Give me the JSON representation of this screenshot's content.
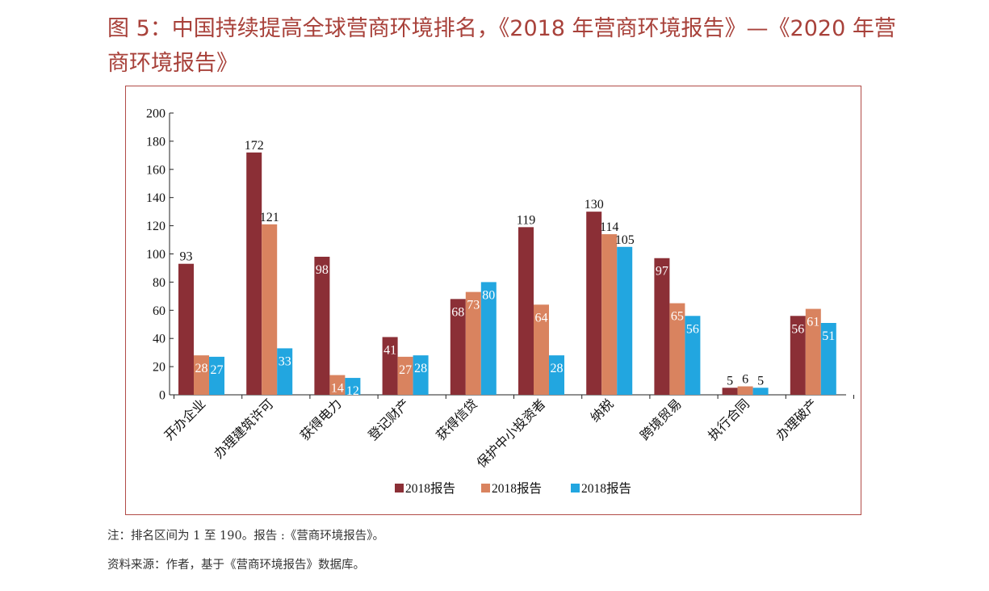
{
  "title": "图 5：中国持续提高全球营商环境排名，《2018 年营商环境报告》—《2020 年营商环境报告》",
  "note": "注：排名区间为 1 至 190。报告 :《营商环境报告》。",
  "source": "资料来源：作者，基于《营商环境报告》数据库。",
  "colors": {
    "title": "#a8413a",
    "frame": "#b14b47",
    "series": [
      "#8b2f36",
      "#d9835f",
      "#22a6e0"
    ]
  },
  "chart_data": {
    "type": "bar",
    "categories": [
      "开办企业",
      "办理建筑许可",
      "获得电力",
      "登记财产",
      "获得信贷",
      "保护中小投资者",
      "纳税",
      "跨境贸易",
      "执行合同",
      "办理破产"
    ],
    "series": [
      {
        "name": "2018报告",
        "values": [
          93,
          172,
          98,
          41,
          68,
          119,
          130,
          97,
          5,
          56
        ]
      },
      {
        "name": "2018报告",
        "values": [
          28,
          121,
          14,
          27,
          73,
          64,
          114,
          65,
          6,
          61
        ]
      },
      {
        "name": "2018报告",
        "values": [
          27,
          33,
          12,
          28,
          80,
          28,
          105,
          56,
          5,
          51
        ]
      }
    ],
    "data_labels": [
      [
        "93",
        "172",
        "98",
        "41",
        "68",
        "119",
        "130",
        "97",
        "5",
        "56"
      ],
      [
        "28",
        "121",
        "14",
        "27",
        "73",
        "64",
        "114",
        "65",
        "6",
        "61"
      ],
      [
        "27",
        "33",
        "12",
        "28",
        "80",
        "28",
        "105",
        "56",
        "5",
        "51"
      ]
    ],
    "label_inside": [
      [
        false,
        false,
        true,
        true,
        true,
        false,
        false,
        true,
        false,
        true
      ],
      [
        true,
        false,
        true,
        true,
        true,
        true,
        false,
        true,
        false,
        true
      ],
      [
        true,
        true,
        true,
        true,
        true,
        true,
        false,
        true,
        false,
        true
      ]
    ],
    "yticks": [
      "0",
      "20",
      "40",
      "60",
      "80",
      "100",
      "120",
      "140",
      "160",
      "180",
      "200"
    ],
    "ylim": [
      0,
      200
    ],
    "grid": false,
    "legend_position": "bottom"
  }
}
